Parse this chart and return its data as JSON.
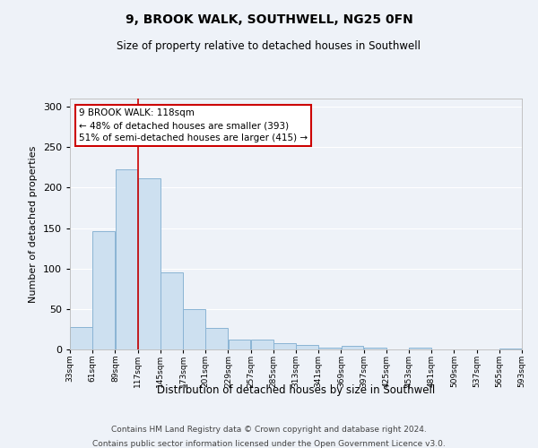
{
  "title": "9, BROOK WALK, SOUTHWELL, NG25 0FN",
  "subtitle": "Size of property relative to detached houses in Southwell",
  "xlabel": "Distribution of detached houses by size in Southwell",
  "ylabel": "Number of detached properties",
  "bar_color": "#cde0f0",
  "bar_edge_color": "#8ab4d4",
  "background_color": "#eef2f8",
  "grid_color": "#ffffff",
  "annotation_box_color": "#cc0000",
  "annotation_line_color": "#cc0000",
  "property_line_x": 117,
  "property_size": 118,
  "pct_smaller": 48,
  "n_smaller": 393,
  "pct_larger": 51,
  "n_larger": 415,
  "bin_edges": [
    33,
    61,
    89,
    117,
    145,
    173,
    201,
    229,
    257,
    285,
    313,
    341,
    369,
    397,
    425,
    453,
    481,
    509,
    537,
    565,
    593
  ],
  "bin_heights": [
    28,
    146,
    222,
    211,
    95,
    50,
    27,
    12,
    12,
    8,
    5,
    2,
    4,
    2,
    0,
    2,
    0,
    0,
    0,
    1
  ],
  "ylim": [
    0,
    310
  ],
  "yticks": [
    0,
    50,
    100,
    150,
    200,
    250,
    300
  ],
  "tick_labels": [
    "33sqm",
    "61sqm",
    "89sqm",
    "117sqm",
    "145sqm",
    "173sqm",
    "201sqm",
    "229sqm",
    "257sqm",
    "285sqm",
    "313sqm",
    "341sqm",
    "369sqm",
    "397sqm",
    "425sqm",
    "453sqm",
    "481sqm",
    "509sqm",
    "537sqm",
    "565sqm",
    "593sqm"
  ],
  "footer_line1": "Contains HM Land Registry data © Crown copyright and database right 2024.",
  "footer_line2": "Contains public sector information licensed under the Open Government Licence v3.0."
}
